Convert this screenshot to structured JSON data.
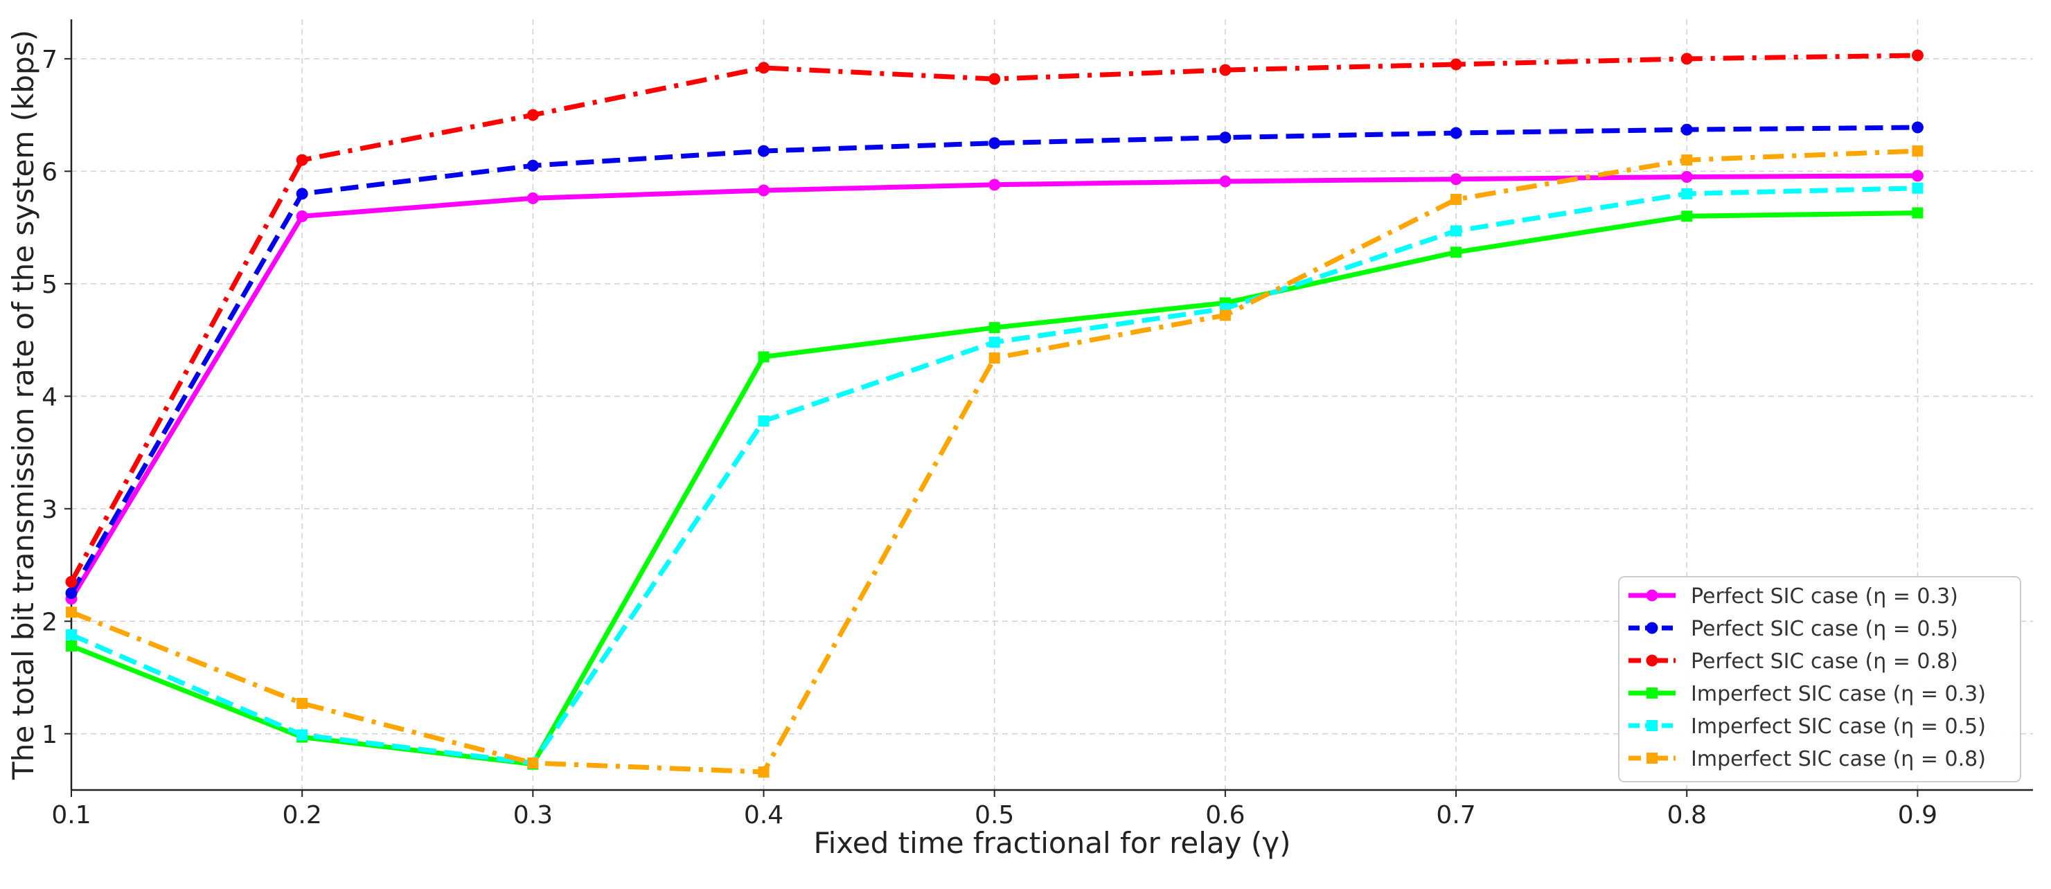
{
  "chart_data": {
    "type": "line",
    "title": "",
    "xlabel": "Fixed time fractional for relay (γ)",
    "ylabel": "The total bit transmission rate of the system (kbps)",
    "xlim": [
      0.1,
      0.95
    ],
    "ylim": [
      0.5,
      7.35
    ],
    "x_ticks": [
      0.1,
      0.2,
      0.3,
      0.4,
      0.5,
      0.6,
      0.7,
      0.8,
      0.9
    ],
    "x_tick_labels": [
      "0.1",
      "0.2",
      "0.3",
      "0.4",
      "0.5",
      "0.6",
      "0.7",
      "0.8",
      "0.9"
    ],
    "y_ticks": [
      1,
      2,
      3,
      4,
      5,
      6,
      7
    ],
    "y_tick_labels": [
      "1",
      "2",
      "3",
      "4",
      "5",
      "6",
      "7"
    ],
    "grid": true,
    "legend_position": "bottom-right",
    "x": [
      0.1,
      0.2,
      0.3,
      0.4,
      0.5,
      0.6,
      0.7,
      0.8,
      0.9
    ],
    "series": [
      {
        "name": "Perfect SIC case (η = 0.3)",
        "color": "#ff00ff",
        "dash": "solid",
        "marker": "circle",
        "values": [
          2.2,
          5.6,
          5.76,
          5.83,
          5.88,
          5.91,
          5.93,
          5.95,
          5.96
        ]
      },
      {
        "name": "Perfect SIC case (η = 0.5)",
        "color": "#0000ee",
        "dash": "dashed",
        "marker": "circle",
        "values": [
          2.25,
          5.8,
          6.05,
          6.18,
          6.25,
          6.3,
          6.34,
          6.37,
          6.39
        ]
      },
      {
        "name": "Perfect SIC case (η = 0.8)",
        "color": "#ff0000",
        "dash": "dashdot",
        "marker": "circle",
        "values": [
          2.35,
          6.1,
          6.5,
          6.92,
          6.82,
          6.9,
          6.95,
          7.0,
          7.03
        ]
      },
      {
        "name": "Imperfect SIC case (η = 0.3)",
        "color": "#00ff00",
        "dash": "solid",
        "marker": "square",
        "values": [
          1.78,
          0.97,
          0.73,
          4.35,
          4.61,
          4.83,
          5.28,
          5.6,
          5.63
        ]
      },
      {
        "name": "Imperfect SIC case (η = 0.5)",
        "color": "#00ffff",
        "dash": "dashed",
        "marker": "square",
        "values": [
          1.88,
          0.99,
          0.74,
          3.78,
          4.48,
          4.78,
          5.47,
          5.8,
          5.85
        ]
      },
      {
        "name": "Imperfect SIC case (η = 0.8)",
        "color": "#ffa500",
        "dash": "dashdot",
        "marker": "square",
        "values": [
          2.08,
          1.27,
          0.74,
          0.66,
          4.34,
          4.72,
          5.75,
          6.1,
          6.18
        ]
      }
    ]
  }
}
